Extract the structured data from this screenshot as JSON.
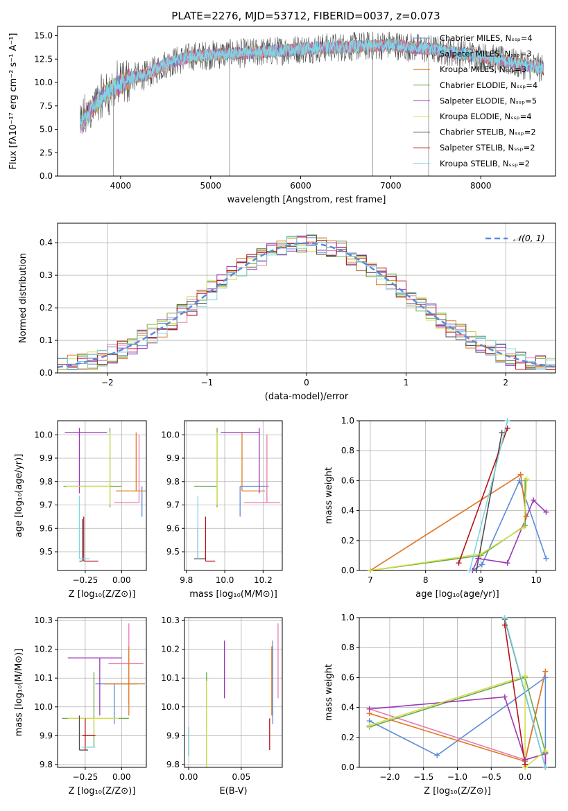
{
  "figure": {
    "title": "PLATE=2276, MJD=53712, FIBERID=0037, z=0.073"
  },
  "colors": {
    "Chabrier MILES": "#5b8bd9",
    "Salpeter MILES": "#e87ab0",
    "Kroupa MILES": "#e07b22",
    "Chabrier ELODIE": "#6aa84f",
    "Salpeter ELODIE": "#9b37b8",
    "Kroupa ELODIE": "#d4df4a",
    "Chabrier STELIB": "#4d4d4d",
    "Salpeter STELIB": "#b5121b",
    "Kroupa STELIB": "#7fd6e0"
  },
  "chart_data": [
    {
      "id": "spectrum",
      "type": "line",
      "xlabel": "wavelength [Angstrom, rest frame]",
      "ylabel": "Flux [fλ10⁻¹⁷ erg cm⁻² s⁻¹ A⁻¹]",
      "xlim": [
        3300,
        8830
      ],
      "ylim": [
        0,
        16
      ],
      "xticks": [
        "4000",
        "5000",
        "6000",
        "7000",
        "8000"
      ],
      "yticks": [
        "0.0",
        "2.5",
        "5.0",
        "7.5",
        "10.0",
        "12.5",
        "15.0"
      ],
      "legend_position": "right",
      "legend": [
        "Chabrier MILES, Nₛₛₚ=4",
        "Salpeter MILES, Nₛₛₚ=3",
        "Kroupa MILES, Nₛₛₚ=3",
        "Chabrier ELODIE, Nₛₛₚ=4",
        "Salpeter ELODIE, Nₛₛₚ=5",
        "Kroupa ELODIE, Nₛₛₚ=4",
        "Chabrier STELIB, Nₛₛₚ=2",
        "Salpeter STELIB, Nₛₛₚ=2",
        "Kroupa STELIB, Nₛₛₚ=2"
      ],
      "continuum": [
        [
          3550,
          5.5
        ],
        [
          3700,
          7.5
        ],
        [
          3800,
          8.5
        ],
        [
          3950,
          9.5
        ],
        [
          4100,
          10.5
        ],
        [
          4300,
          10.8
        ],
        [
          4500,
          12.0
        ],
        [
          4800,
          12.8
        ],
        [
          5100,
          13.0
        ],
        [
          5500,
          13.2
        ],
        [
          6000,
          13.6
        ],
        [
          6500,
          13.8
        ],
        [
          7000,
          14.0
        ],
        [
          7500,
          13.5
        ],
        [
          8000,
          12.8
        ],
        [
          8400,
          12.0
        ],
        [
          8700,
          11.5
        ]
      ],
      "vertical_spikes": [
        [
          3920,
          0
        ],
        [
          5210,
          0
        ],
        [
          6800,
          0
        ],
        [
          7420,
          0
        ]
      ]
    },
    {
      "id": "residual-histogram",
      "type": "line",
      "xlabel": "(data-model)/error",
      "ylabel": "Normed distribution",
      "xlim": [
        -2.5,
        2.5
      ],
      "ylim": [
        0,
        0.46
      ],
      "xticks": [
        "−2",
        "−1",
        "0",
        "1",
        "2"
      ],
      "yticks": [
        "0.0",
        "0.1",
        "0.2",
        "0.3",
        "0.4"
      ],
      "legend": [
        "𝒩(0, 1)"
      ],
      "legend_position": "top-right",
      "grid": true,
      "bin_width": 0.1,
      "gaussian": {
        "mean": 0,
        "sigma": 1
      }
    },
    {
      "id": "age-vs-Z",
      "type": "scatter",
      "xlabel": "Z [log₁₀(Z/Z⊙)]",
      "ylabel": "age  [log₁₀(age/yr)]",
      "xlim": [
        -0.44,
        0.17
      ],
      "ylim": [
        9.42,
        10.06
      ],
      "xticks": [
        "−0.25",
        "0.00"
      ],
      "yticks": [
        "9.5",
        "9.6",
        "9.7",
        "9.8",
        "9.9",
        "10.0"
      ],
      "grid": true,
      "points": [
        {
          "model": "Chabrier MILES",
          "x": 0.14,
          "y": 9.78,
          "xerr": [
            0.0,
            0.0
          ],
          "yerr": [
            0.13,
            0.0
          ]
        },
        {
          "model": "Salpeter MILES",
          "x": 0.12,
          "y": 9.71,
          "xerr": [
            0.17,
            0.0
          ],
          "yerr": [
            0.0,
            0.29
          ]
        },
        {
          "model": "Kroupa MILES",
          "x": 0.1,
          "y": 9.76,
          "xerr": [
            0.14,
            0.07
          ],
          "yerr": [
            0.0,
            0.25
          ]
        },
        {
          "model": "Chabrier ELODIE",
          "x": -0.08,
          "y": 9.78,
          "xerr": [
            0.32,
            0.08
          ],
          "yerr": [
            0.09,
            0.25
          ]
        },
        {
          "model": "Salpeter ELODIE",
          "x": -0.29,
          "y": 10.01,
          "xerr": [
            0.1,
            0.19
          ],
          "yerr": [
            0.26,
            0.02
          ]
        },
        {
          "model": "Kroupa ELODIE",
          "x": -0.08,
          "y": 9.78,
          "xerr": [
            0.3,
            0.0
          ],
          "yerr": [
            0.08,
            0.23
          ]
        },
        {
          "model": "Chabrier STELIB",
          "x": -0.27,
          "y": 9.46,
          "xerr": [
            0.02,
            0.0
          ],
          "yerr": [
            0.0,
            0.18
          ]
        },
        {
          "model": "Salpeter STELIB",
          "x": -0.26,
          "y": 9.46,
          "xerr": [
            0.0,
            0.1
          ],
          "yerr": [
            0.0,
            0.19
          ]
        },
        {
          "model": "Kroupa STELIB",
          "x": -0.29,
          "y": 9.47,
          "xerr": [
            0.0,
            0.07
          ],
          "yerr": [
            0.0,
            0.27
          ]
        }
      ]
    },
    {
      "id": "age-vs-mass",
      "type": "scatter",
      "xlabel": "mass [log₁₀(M/M⊙)]",
      "ylabel": "",
      "xlim": [
        9.79,
        10.3
      ],
      "ylim": [
        9.42,
        10.06
      ],
      "xticks": [
        "9.8",
        "10.0",
        "10.2"
      ],
      "yticks": [
        "9.5",
        "9.6",
        "9.7",
        "9.8",
        "9.9",
        "10.0"
      ],
      "grid": true,
      "points": [
        {
          "model": "Chabrier MILES",
          "x": 10.08,
          "y": 9.78,
          "xerr": [
            0.0,
            0.15
          ],
          "yerr": [
            0.13,
            0.0
          ]
        },
        {
          "model": "Salpeter MILES",
          "x": 10.22,
          "y": 9.71,
          "xerr": [
            0.12,
            0.07
          ],
          "yerr": [
            0.0,
            0.29
          ]
        },
        {
          "model": "Kroupa MILES",
          "x": 10.09,
          "y": 9.76,
          "xerr": [
            0.0,
            0.12
          ],
          "yerr": [
            0.0,
            0.25
          ]
        },
        {
          "model": "Chabrier ELODIE",
          "x": 9.96,
          "y": 9.78,
          "xerr": [
            0.12,
            0.0
          ],
          "yerr": [
            0.09,
            0.25
          ]
        },
        {
          "model": "Salpeter ELODIE",
          "x": 10.18,
          "y": 10.01,
          "xerr": [
            0.2,
            0.0
          ],
          "yerr": [
            0.26,
            0.02
          ]
        },
        {
          "model": "Kroupa ELODIE",
          "x": 9.96,
          "y": 9.78,
          "xerr": [
            0.0,
            0.0
          ],
          "yerr": [
            0.08,
            0.23
          ]
        },
        {
          "model": "Chabrier STELIB",
          "x": 9.86,
          "y": 9.47,
          "xerr": [
            0.02,
            0.04
          ],
          "yerr": [
            0.0,
            0.13
          ]
        },
        {
          "model": "Salpeter STELIB",
          "x": 9.9,
          "y": 9.46,
          "xerr": [
            0.0,
            0.05
          ],
          "yerr": [
            0.0,
            0.19
          ]
        },
        {
          "model": "Kroupa STELIB",
          "x": 9.86,
          "y": 9.47,
          "xerr": [
            0.0,
            0.0
          ],
          "yerr": [
            0.0,
            0.27
          ]
        }
      ]
    },
    {
      "id": "weight-vs-age",
      "type": "line",
      "xlabel": "age  [log₁₀(age/yr)]",
      "ylabel": "mass weight",
      "xlim": [
        6.8,
        10.35
      ],
      "ylim": [
        0,
        1
      ],
      "xticks": [
        "7",
        "8",
        "9",
        "10"
      ],
      "yticks": [
        "0.0",
        "0.2",
        "0.4",
        "0.6",
        "0.8",
        "1.0"
      ],
      "grid": true,
      "series": [
        {
          "model": "Chabrier MILES",
          "points": [
            [
              10.18,
              0.08
            ],
            [
              9.7,
              0.6
            ],
            [
              9.02,
              0.04
            ],
            [
              8.85,
              0.0
            ]
          ]
        },
        {
          "model": "Salpeter MILES",
          "points": [
            [
              9.82,
              0.36
            ],
            [
              9.72,
              0.64
            ],
            [
              7.0,
              0.0
            ]
          ]
        },
        {
          "model": "Kroupa MILES",
          "points": [
            [
              9.82,
              0.36
            ],
            [
              9.72,
              0.64
            ],
            [
              7.0,
              0.0
            ]
          ]
        },
        {
          "model": "Chabrier ELODIE",
          "points": [
            [
              9.8,
              0.6
            ],
            [
              9.8,
              0.3
            ],
            [
              9.0,
              0.1
            ],
            [
              7.0,
              0.0
            ]
          ]
        },
        {
          "model": "Salpeter ELODIE",
          "points": [
            [
              10.18,
              0.39
            ],
            [
              9.95,
              0.47
            ],
            [
              9.48,
              0.05
            ],
            [
              8.95,
              0.08
            ],
            [
              8.85,
              0.0
            ]
          ]
        },
        {
          "model": "Kroupa ELODIE",
          "points": [
            [
              9.83,
              0.61
            ],
            [
              9.78,
              0.29
            ],
            [
              9.0,
              0.11
            ],
            [
              7.0,
              0.0
            ]
          ]
        },
        {
          "model": "Chabrier STELIB",
          "points": [
            [
              9.38,
              0.92
            ],
            [
              8.92,
              0.0
            ]
          ]
        },
        {
          "model": "Salpeter STELIB",
          "points": [
            [
              9.48,
              0.95
            ],
            [
              8.6,
              0.05
            ]
          ]
        },
        {
          "model": "Kroupa STELIB",
          "points": [
            [
              9.48,
              1.0
            ],
            [
              8.8,
              0.0
            ]
          ]
        }
      ]
    },
    {
      "id": "mass-vs-Z",
      "type": "scatter",
      "xlabel": "Z [log₁₀(Z/Z⊙)]",
      "ylabel": "mass [log₁₀(M/M⊙)]",
      "xlim": [
        -0.44,
        0.17
      ],
      "ylim": [
        9.79,
        10.31
      ],
      "xticks": [
        "−0.25",
        "0.00"
      ],
      "yticks": [
        "9.8",
        "9.9",
        "10.0",
        "10.1",
        "10.2",
        "10.3"
      ],
      "grid": true,
      "points": [
        {
          "model": "Chabrier MILES",
          "x": -0.05,
          "y": 10.08,
          "xerr": [
            0.13,
            0.16
          ],
          "yerr": [
            0.14,
            0.0
          ]
        },
        {
          "model": "Salpeter MILES",
          "x": 0.05,
          "y": 10.15,
          "xerr": [
            0.14,
            0.1
          ],
          "yerr": [
            0.14,
            0.14
          ]
        },
        {
          "model": "Kroupa MILES",
          "x": 0.05,
          "y": 10.08,
          "xerr": [
            0.17,
            0.11
          ],
          "yerr": [
            0.11,
            0.13
          ]
        },
        {
          "model": "Chabrier ELODIE",
          "x": -0.19,
          "y": 9.96,
          "xerr": [
            0.22,
            0.24
          ],
          "yerr": [
            0.1,
            0.16
          ]
        },
        {
          "model": "Salpeter ELODIE",
          "x": -0.15,
          "y": 10.17,
          "xerr": [
            0.22,
            0.15
          ],
          "yerr": [
            0.2,
            0.0
          ]
        },
        {
          "model": "Kroupa ELODIE",
          "x": -0.19,
          "y": 9.96,
          "xerr": [
            0.18,
            0.17
          ],
          "yerr": [
            0.06,
            0.0
          ]
        },
        {
          "model": "Chabrier STELIB",
          "x": -0.29,
          "y": 9.85,
          "xerr": [
            0.0,
            0.06
          ],
          "yerr": [
            0.0,
            0.12
          ]
        },
        {
          "model": "Salpeter STELIB",
          "x": -0.25,
          "y": 9.9,
          "xerr": [
            0.02,
            0.07
          ],
          "yerr": [
            0.05,
            0.06
          ]
        },
        {
          "model": "Kroupa STELIB",
          "x": -0.27,
          "y": 9.86,
          "xerr": [
            0.0,
            0.09
          ],
          "yerr": [
            0.0,
            0.0
          ]
        }
      ]
    },
    {
      "id": "mass-vs-ebv",
      "type": "scatter",
      "xlabel": "E(B-V)",
      "ylabel": "",
      "xlim": [
        -0.004,
        0.089
      ],
      "ylim": [
        9.79,
        10.31
      ],
      "xticks": [
        "0.00",
        "0.05"
      ],
      "yticks": [
        "9.8",
        "9.9",
        "10.0",
        "10.1",
        "10.2",
        "10.3"
      ],
      "grid": true,
      "points": [
        {
          "model": "Chabrier MILES",
          "x": 0.08,
          "y": 10.08,
          "yerr": [
            0.14,
            0.15
          ]
        },
        {
          "model": "Salpeter MILES",
          "x": 0.085,
          "y": 10.15,
          "yerr": [
            0.12,
            0.14
          ]
        },
        {
          "model": "Kroupa MILES",
          "x": 0.079,
          "y": 10.08,
          "yerr": [
            0.11,
            0.13
          ]
        },
        {
          "model": "Chabrier ELODIE",
          "x": 0.017,
          "y": 10.02,
          "yerr": [
            0.22,
            0.1
          ]
        },
        {
          "model": "Salpeter ELODIE",
          "x": 0.034,
          "y": 10.13,
          "yerr": [
            0.1,
            0.1
          ]
        },
        {
          "model": "Kroupa ELODIE",
          "x": 0.017,
          "y": 9.96,
          "yerr": [
            0.17,
            0.13
          ]
        },
        {
          "model": "Chabrier STELIB",
          "x": 0.0,
          "y": 9.86,
          "yerr": [
            0.03,
            0.07
          ]
        },
        {
          "model": "Salpeter STELIB",
          "x": 0.077,
          "y": 9.89,
          "yerr": [
            0.04,
            0.07
          ]
        },
        {
          "model": "Kroupa STELIB",
          "x": 0.0,
          "y": 9.88,
          "yerr": [
            0.05,
            0.05
          ]
        }
      ]
    },
    {
      "id": "weight-vs-Z",
      "type": "line",
      "xlabel": "Z [log₁₀(Z/Z⊙)]",
      "ylabel": "mass weight",
      "xlim": [
        -2.45,
        0.45
      ],
      "ylim": [
        0,
        1
      ],
      "xticks": [
        "−2.0",
        "−1.5",
        "−1.0",
        "−0.5",
        "0.0"
      ],
      "yticks": [
        "0.0",
        "0.2",
        "0.4",
        "0.6",
        "0.8",
        "1.0"
      ],
      "grid": true,
      "series": [
        {
          "model": "Chabrier MILES",
          "points": [
            [
              -2.3,
              0.31
            ],
            [
              -1.3,
              0.08
            ],
            [
              0.3,
              0.6
            ],
            [
              0.3,
              0.0
            ]
          ]
        },
        {
          "model": "Salpeter MILES",
          "points": [
            [
              -2.3,
              0.39
            ],
            [
              0.0,
              0.05
            ],
            [
              0.3,
              0.64
            ]
          ]
        },
        {
          "model": "Kroupa MILES",
          "points": [
            [
              -2.3,
              0.36
            ],
            [
              0.0,
              0.04
            ],
            [
              0.3,
              0.64
            ]
          ]
        },
        {
          "model": "Chabrier ELODIE",
          "points": [
            [
              -2.3,
              0.27
            ],
            [
              0.0,
              0.6
            ],
            [
              0.3,
              0.1
            ]
          ]
        },
        {
          "model": "Salpeter ELODIE",
          "points": [
            [
              -2.3,
              0.39
            ],
            [
              -0.3,
              0.47
            ],
            [
              0.0,
              0.05
            ],
            [
              0.3,
              0.09
            ],
            [
              0.3,
              0.0
            ]
          ]
        },
        {
          "model": "Kroupa ELODIE",
          "points": [
            [
              -2.3,
              0.28
            ],
            [
              0.0,
              0.61
            ],
            [
              0.0,
              0.0
            ],
            [
              0.3,
              0.11
            ]
          ]
        },
        {
          "model": "Chabrier STELIB",
          "points": [
            [
              -0.3,
              0.99
            ],
            [
              0.3,
              0.0
            ]
          ]
        },
        {
          "model": "Salpeter STELIB",
          "points": [
            [
              -0.3,
              0.95
            ],
            [
              0.0,
              0.02
            ]
          ]
        },
        {
          "model": "Kroupa STELIB",
          "points": [
            [
              -0.3,
              1.0
            ],
            [
              0.3,
              0.0
            ]
          ]
        }
      ]
    }
  ]
}
